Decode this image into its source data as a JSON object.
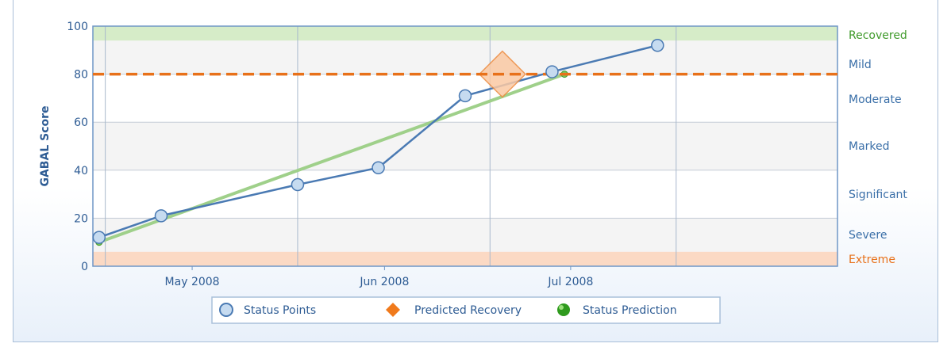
{
  "chart_data": {
    "type": "line",
    "title": "",
    "ylabel": "GABAL Score",
    "ylim": [
      0,
      100
    ],
    "yticks": [
      0,
      20,
      40,
      60,
      80,
      100
    ],
    "xlim": [
      "2008-04-15",
      "2008-08-13"
    ],
    "x_ticks": [
      {
        "label": "May 2008",
        "date": "2008-05-01"
      },
      {
        "label": "Jun 2008",
        "date": "2008-06-01"
      },
      {
        "label": "Jul 2008",
        "date": "2008-07-01"
      }
    ],
    "x_gridlines": [
      "2008-04-17",
      "2008-05-18",
      "2008-06-18",
      "2008-07-18"
    ],
    "status_bands": [
      {
        "label": "Recovered",
        "color": "#3f9a2a"
      },
      {
        "label": "Mild",
        "color": "#3a6fa8"
      },
      {
        "label": "Moderate",
        "color": "#3a6fa8"
      },
      {
        "label": "Marked",
        "color": "#3a6fa8"
      },
      {
        "label": "Significant",
        "color": "#3a6fa8"
      },
      {
        "label": "Severe",
        "color": "#3a6fa8"
      },
      {
        "label": "Extreme",
        "color": "#e8711a"
      }
    ],
    "green_band": {
      "from": 94,
      "to": 100,
      "color": "#d6ecc8"
    },
    "red_band": {
      "from": 0,
      "to": 6,
      "color": "#fbd9c4"
    },
    "recovery_threshold": {
      "value": 80,
      "color": "#e8711a"
    },
    "series": [
      {
        "name": "Status Points",
        "color": "#4a7ab3",
        "fill": "#c6dbf0",
        "points": [
          {
            "x": "2008-04-16",
            "y": 12
          },
          {
            "x": "2008-04-26",
            "y": 21
          },
          {
            "x": "2008-05-18",
            "y": 34
          },
          {
            "x": "2008-05-31",
            "y": 41
          },
          {
            "x": "2008-06-14",
            "y": 71
          },
          {
            "x": "2008-06-28",
            "y": 81
          },
          {
            "x": "2008-07-15",
            "y": 92
          }
        ]
      },
      {
        "name": "Predicted Recovery",
        "color": "#ee8a3c",
        "fill": "#fbc9a4",
        "points": [
          {
            "x": "2008-06-20",
            "y": 80
          }
        ]
      },
      {
        "name": "Status Prediction",
        "color": "#9fd08a",
        "marker": "#3f9a2a",
        "points": [
          {
            "x": "2008-04-16",
            "y": 10
          },
          {
            "x": "2008-06-30",
            "y": 80
          }
        ]
      }
    ],
    "legend": {
      "placement": "bottom-center",
      "items": [
        "Status Points",
        "Predicted Recovery",
        "Status Prediction"
      ]
    }
  }
}
